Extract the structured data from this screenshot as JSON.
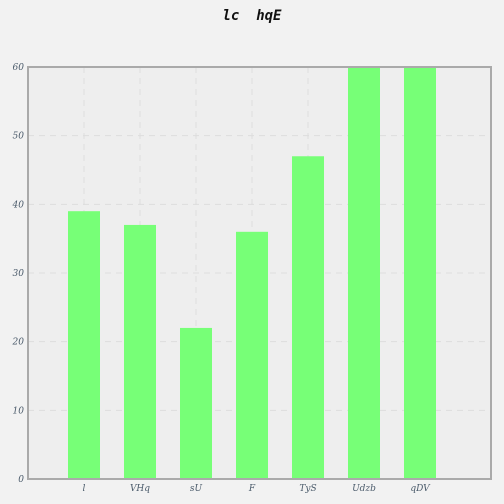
{
  "chart_data": {
    "type": "bar",
    "title": "lc  hqE",
    "xlabel": "",
    "ylabel": "",
    "categories": [
      "l",
      "VHq",
      "sU",
      "F",
      "TyS",
      "Udzb",
      "qDV"
    ],
    "values": [
      39,
      37,
      22,
      36,
      47,
      60,
      60
    ],
    "ylim": [
      0,
      60
    ],
    "yticks": [
      0,
      10,
      20,
      30,
      40,
      50,
      60
    ],
    "grid": true,
    "legend": "none",
    "colors": {
      "bar": "#77ff77",
      "plot_background": "#eeeeee",
      "page_background": "#f2f2f2",
      "grid": "#dddddd",
      "axis": "#aaaaaa"
    }
  }
}
